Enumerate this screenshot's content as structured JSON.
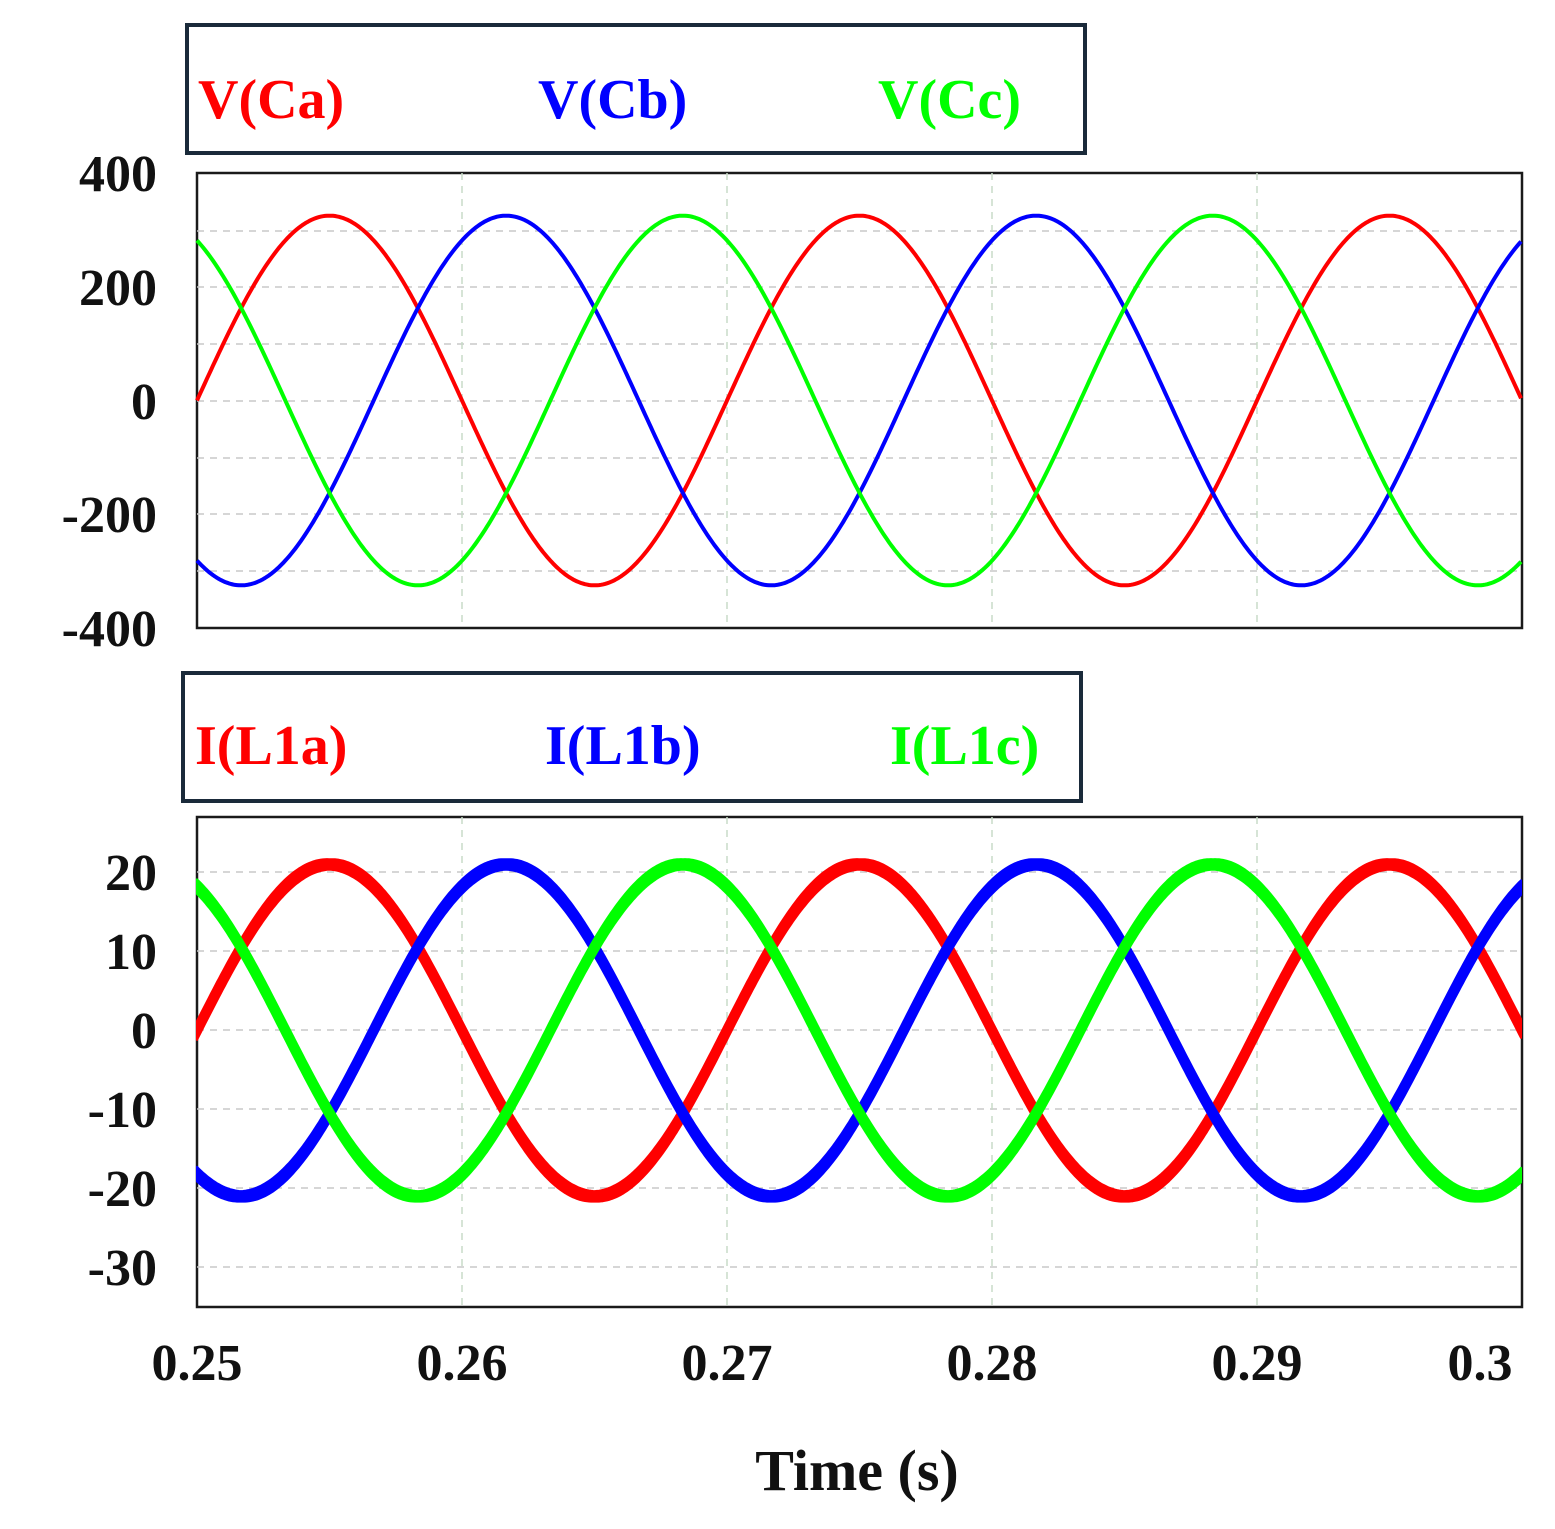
{
  "chart_data": [
    {
      "type": "line",
      "panel": "top",
      "legend": [
        "V(Ca)",
        "V(Cb)",
        "V(Cc)"
      ],
      "xlim": [
        0.25,
        0.3
      ],
      "ylim": [
        -400,
        400
      ],
      "yticks": [
        400,
        200,
        0,
        -200,
        -400
      ],
      "ytick_labels": [
        "400",
        "200",
        "0",
        "-200",
        "-400"
      ],
      "grid": true,
      "waveform": "three-phase sine, 50 Hz",
      "series": [
        {
          "name": "V(Ca)",
          "color": "#ff0000",
          "amplitude": 325,
          "phase_deg": 180,
          "frequency_hz": 50
        },
        {
          "name": "V(Cb)",
          "color": "#0000ff",
          "amplitude": 325,
          "phase_deg": 60,
          "frequency_hz": 50
        },
        {
          "name": "V(Cc)",
          "color": "#00ff00",
          "amplitude": 325,
          "phase_deg": -60,
          "frequency_hz": 50
        }
      ]
    },
    {
      "type": "line",
      "panel": "bottom",
      "legend": [
        "I(L1a)",
        "I(L1b)",
        "I(L1c)"
      ],
      "xlim": [
        0.25,
        0.3
      ],
      "ylim": [
        -35,
        27
      ],
      "yticks": [
        20,
        10,
        0,
        -10,
        -20,
        -30
      ],
      "ytick_labels": [
        "20",
        "10",
        "0",
        "-10",
        "-20",
        "-30"
      ],
      "xticks": [
        0.25,
        0.26,
        0.27,
        0.28,
        0.29,
        0.3
      ],
      "xtick_labels": [
        "0.25",
        "0.26",
        "0.27",
        "0.28",
        "0.29",
        "0.3"
      ],
      "xlabel": "Time (s)",
      "grid": true,
      "waveform": "three-phase sine with switching ripple, 50 Hz",
      "series": [
        {
          "name": "I(L1a)",
          "color": "#ff0000",
          "amplitude": 21,
          "ripple": 1.2,
          "phase_deg": 180,
          "frequency_hz": 50
        },
        {
          "name": "I(L1b)",
          "color": "#0000ff",
          "amplitude": 21,
          "ripple": 1.2,
          "phase_deg": 60,
          "frequency_hz": 50
        },
        {
          "name": "I(L1c)",
          "color": "#00ff00",
          "amplitude": 21,
          "ripple": 1.2,
          "phase_deg": -60,
          "frequency_hz": 50
        }
      ]
    }
  ]
}
